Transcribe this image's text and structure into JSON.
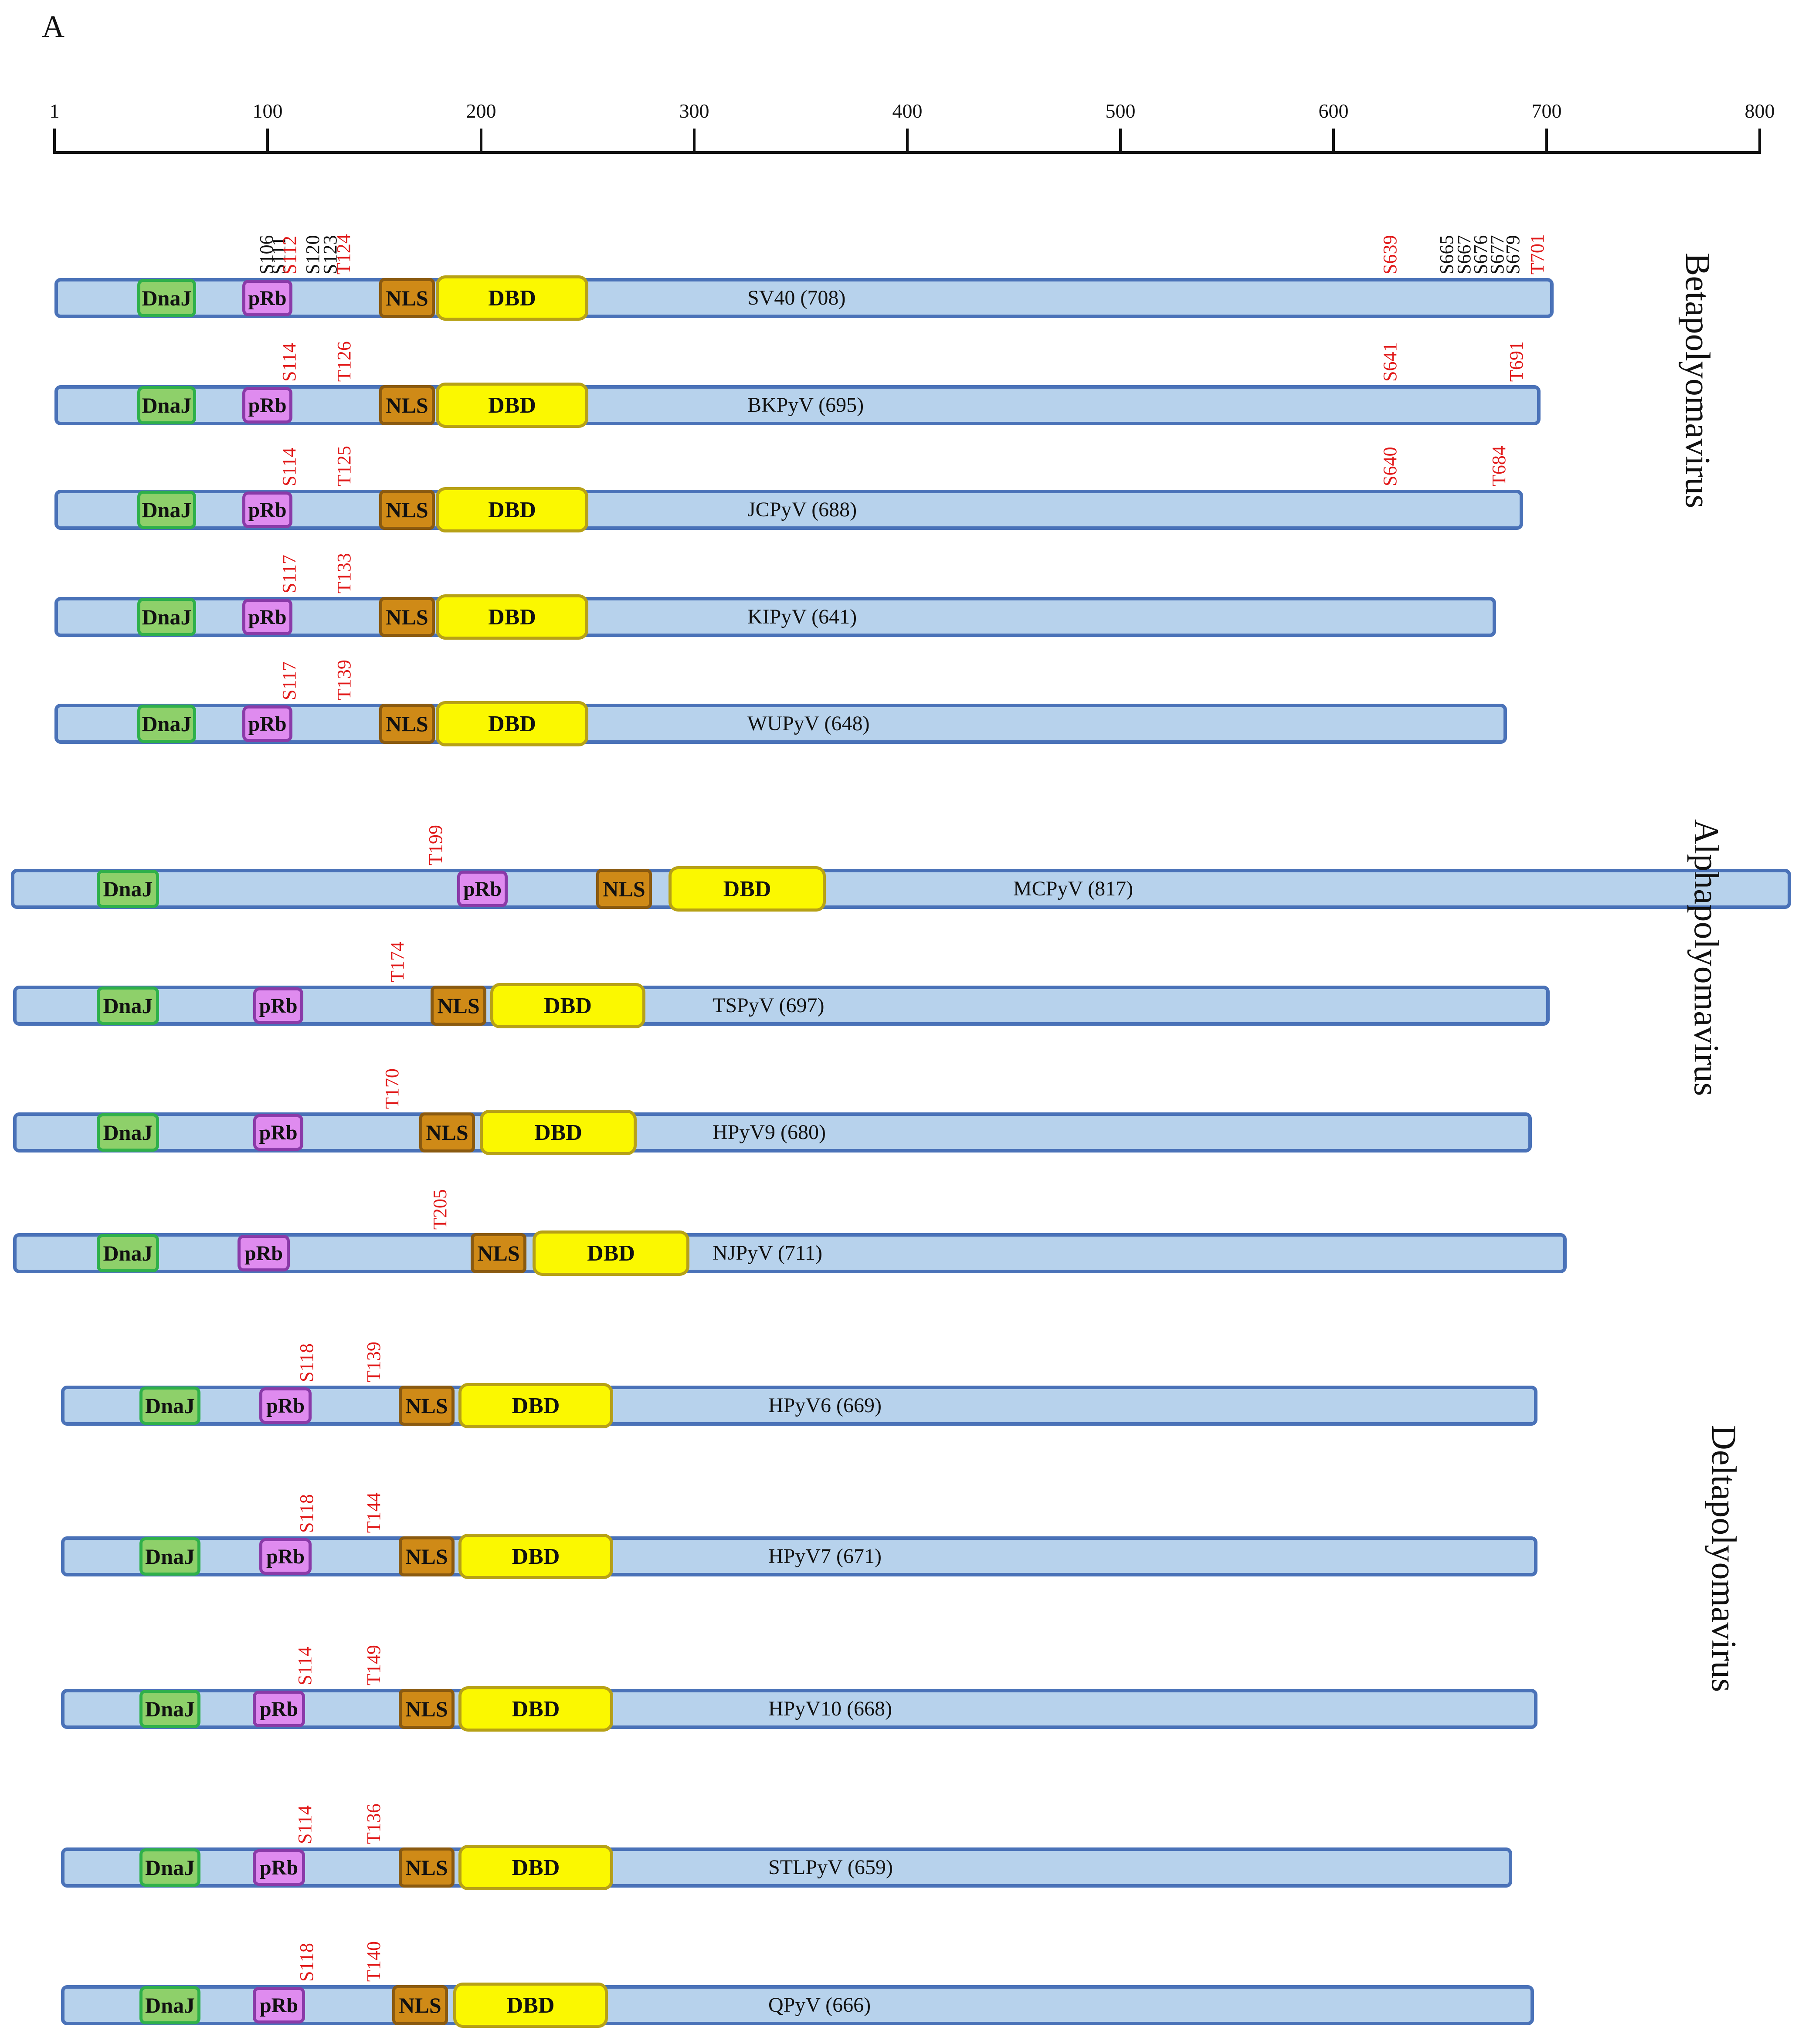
{
  "panel_label": "A",
  "scale": {
    "ticks": [
      "1",
      "100",
      "200",
      "300",
      "400",
      "500",
      "600",
      "700",
      "800"
    ]
  },
  "groups": [
    "Betapolyomavirus",
    "Alphapolyomavirus",
    "Deltapolyomavirus"
  ],
  "proteins": [
    {
      "name": "SV40 (708)",
      "length": 708,
      "group": "Betapolyomavirus",
      "domains": [
        "DnaJ",
        "pRb",
        "NLS",
        "DBD"
      ],
      "sites": [
        {
          "label": "S106",
          "color": "black"
        },
        {
          "label": "S111",
          "color": "black"
        },
        {
          "label": "S112",
          "color": "red"
        },
        {
          "label": "S120",
          "color": "black"
        },
        {
          "label": "S123",
          "color": "black"
        },
        {
          "label": "T124",
          "color": "red"
        },
        {
          "label": "S639",
          "color": "red"
        },
        {
          "label": "S665",
          "color": "black"
        },
        {
          "label": "S667",
          "color": "black"
        },
        {
          "label": "S676",
          "color": "black"
        },
        {
          "label": "S677",
          "color": "black"
        },
        {
          "label": "S679",
          "color": "black"
        },
        {
          "label": "T701",
          "color": "red"
        }
      ]
    },
    {
      "name": "BKPyV (695)",
      "length": 695,
      "group": "Betapolyomavirus",
      "domains": [
        "DnaJ",
        "pRb",
        "NLS",
        "DBD"
      ],
      "sites": [
        {
          "label": "S114",
          "color": "red"
        },
        {
          "label": "T126",
          "color": "red"
        },
        {
          "label": "S641",
          "color": "red"
        },
        {
          "label": "T691",
          "color": "red"
        }
      ]
    },
    {
      "name": "JCPyV (688)",
      "length": 688,
      "group": "Betapolyomavirus",
      "domains": [
        "DnaJ",
        "pRb",
        "NLS",
        "DBD"
      ],
      "sites": [
        {
          "label": "S114",
          "color": "red"
        },
        {
          "label": "T125",
          "color": "red"
        },
        {
          "label": "S640",
          "color": "red"
        },
        {
          "label": "T684",
          "color": "red"
        }
      ]
    },
    {
      "name": "KIPyV (641)",
      "length": 641,
      "group": "Betapolyomavirus",
      "domains": [
        "DnaJ",
        "pRb",
        "NLS",
        "DBD"
      ],
      "sites": [
        {
          "label": "S117",
          "color": "red"
        },
        {
          "label": "T133",
          "color": "red"
        }
      ]
    },
    {
      "name": "WUPyV (648)",
      "length": 648,
      "group": "Betapolyomavirus",
      "domains": [
        "DnaJ",
        "pRb",
        "NLS",
        "DBD"
      ],
      "sites": [
        {
          "label": "S117",
          "color": "red"
        },
        {
          "label": "T139",
          "color": "red"
        }
      ]
    },
    {
      "name": "MCPyV (817)",
      "length": 817,
      "group": "Alphapolyomavirus",
      "domains": [
        "DnaJ",
        "pRb",
        "NLS",
        "DBD"
      ],
      "sites": [
        {
          "label": "T199",
          "color": "red"
        }
      ]
    },
    {
      "name": "TSPyV (697)",
      "length": 697,
      "group": "Alphapolyomavirus",
      "domains": [
        "DnaJ",
        "pRb",
        "NLS",
        "DBD"
      ],
      "sites": [
        {
          "label": "T174",
          "color": "red"
        }
      ]
    },
    {
      "name": "HPyV9 (680)",
      "length": 680,
      "group": "Alphapolyomavirus",
      "domains": [
        "DnaJ",
        "pRb",
        "NLS",
        "DBD"
      ],
      "sites": [
        {
          "label": "T170",
          "color": "red"
        }
      ]
    },
    {
      "name": "NJPyV (711)",
      "length": 711,
      "group": "Alphapolyomavirus",
      "domains": [
        "DnaJ",
        "pRb",
        "NLS",
        "DBD"
      ],
      "sites": [
        {
          "label": "T205",
          "color": "red"
        }
      ]
    },
    {
      "name": "HPyV6 (669)",
      "length": 669,
      "group": "Deltapolyomavirus",
      "domains": [
        "DnaJ",
        "pRb",
        "NLS",
        "DBD"
      ],
      "sites": [
        {
          "label": "S118",
          "color": "red"
        },
        {
          "label": "T139",
          "color": "red"
        }
      ]
    },
    {
      "name": "HPyV7 (671)",
      "length": 671,
      "group": "Deltapolyomavirus",
      "domains": [
        "DnaJ",
        "pRb",
        "NLS",
        "DBD"
      ],
      "sites": [
        {
          "label": "S118",
          "color": "red"
        },
        {
          "label": "T144",
          "color": "red"
        }
      ]
    },
    {
      "name": "HPyV10 (668)",
      "length": 668,
      "group": "Deltapolyomavirus",
      "domains": [
        "DnaJ",
        "pRb",
        "NLS",
        "DBD"
      ],
      "sites": [
        {
          "label": "S114",
          "color": "red"
        },
        {
          "label": "T149",
          "color": "red"
        }
      ]
    },
    {
      "name": "STLPyV (659)",
      "length": 659,
      "group": "Deltapolyomavirus",
      "domains": [
        "DnaJ",
        "pRb",
        "NLS",
        "DBD"
      ],
      "sites": [
        {
          "label": "S114",
          "color": "red"
        },
        {
          "label": "T136",
          "color": "red"
        }
      ]
    },
    {
      "name": "QPyV (666)",
      "length": 666,
      "group": "Deltapolyomavirus",
      "domains": [
        "DnaJ",
        "pRb",
        "NLS",
        "DBD"
      ],
      "sites": [
        {
          "label": "S118",
          "color": "red"
        },
        {
          "label": "T140",
          "color": "red"
        }
      ]
    }
  ]
}
